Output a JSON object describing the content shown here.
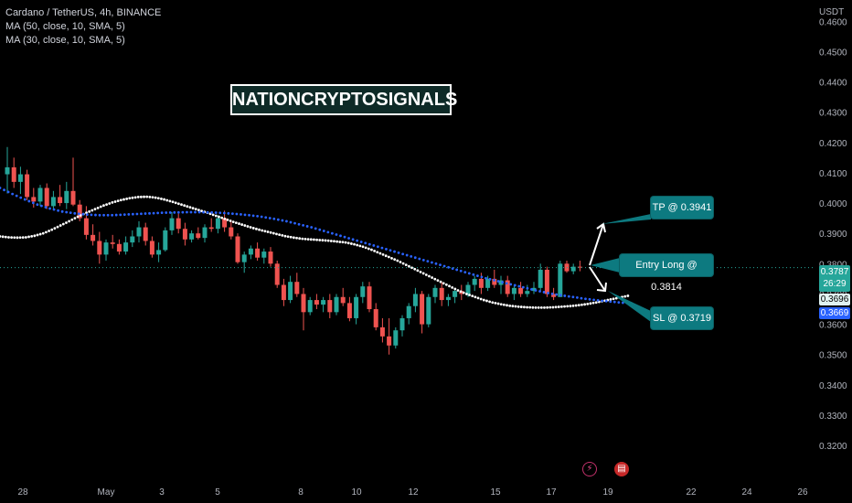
{
  "legend": {
    "symbol": "Cardano / TetherUS, 4h, BINANCE",
    "ma1": "MA (50, close, 10, SMA, 5)",
    "ma2": "MA (30, close, 10, SMA, 5)"
  },
  "watermark": "NATIONCRYPTOSIGNALS",
  "callouts": {
    "tp": "TP @ 0.3941",
    "entry": "Entry Long @ 0.3814",
    "sl": "SL @ 0.3719"
  },
  "price_tags": {
    "last": "0.3787",
    "countdown": "26:29",
    "ma_white": "0.3696",
    "ma_blue": "0.3669"
  },
  "icons": {
    "flash": "lightning-icon",
    "flag": "us-flag-icon"
  },
  "colors": {
    "up": "#26a69a",
    "down": "#ef5350",
    "ma_white": "#ffffff",
    "ma_blue": "#2962ff",
    "callout": "#0d7a80"
  },
  "chart_data": {
    "type": "candlestick",
    "title": "Cardano / TetherUS, 4h, BINANCE",
    "y_unit": "USDT",
    "y_ticks": [
      "0.4600",
      "0.4500",
      "0.4400",
      "0.4300",
      "0.4200",
      "0.4100",
      "0.4000",
      "0.3900",
      "0.3800",
      "0.3700",
      "0.3600",
      "0.3500",
      "0.3400",
      "0.3300",
      "0.3200"
    ],
    "x_ticks": [
      "28",
      "May",
      "3",
      "5",
      "8",
      "10",
      "12",
      "15",
      "17",
      "19",
      "22",
      "24",
      "26"
    ],
    "ylim": [
      0.3146,
      0.4634
    ],
    "grid": false,
    "candles": [
      [
        0.4095,
        0.4185,
        0.4032,
        0.4118
      ],
      [
        0.4118,
        0.415,
        0.405,
        0.407
      ],
      [
        0.407,
        0.412,
        0.403,
        0.4095
      ],
      [
        0.4095,
        0.411,
        0.401,
        0.402
      ],
      [
        0.402,
        0.405,
        0.3985,
        0.4005
      ],
      [
        0.4005,
        0.406,
        0.399,
        0.405
      ],
      [
        0.405,
        0.4065,
        0.398,
        0.399
      ],
      [
        0.399,
        0.404,
        0.398,
        0.402
      ],
      [
        0.402,
        0.406,
        0.399,
        0.4
      ],
      [
        0.4,
        0.407,
        0.398,
        0.404
      ],
      [
        0.404,
        0.415,
        0.399,
        0.3995
      ],
      [
        0.3995,
        0.401,
        0.394,
        0.395
      ],
      [
        0.395,
        0.399,
        0.388,
        0.3895
      ],
      [
        0.3895,
        0.393,
        0.386,
        0.3875
      ],
      [
        0.3875,
        0.3905,
        0.38,
        0.383
      ],
      [
        0.383,
        0.388,
        0.381,
        0.387
      ],
      [
        0.387,
        0.3895,
        0.385,
        0.3865
      ],
      [
        0.3865,
        0.388,
        0.383,
        0.384
      ],
      [
        0.384,
        0.389,
        0.383,
        0.387
      ],
      [
        0.387,
        0.391,
        0.3855,
        0.389
      ],
      [
        0.389,
        0.394,
        0.387,
        0.392
      ],
      [
        0.392,
        0.3935,
        0.386,
        0.3875
      ],
      [
        0.3875,
        0.389,
        0.382,
        0.383
      ],
      [
        0.383,
        0.387,
        0.3805,
        0.3845
      ],
      [
        0.3845,
        0.392,
        0.384,
        0.391
      ],
      [
        0.391,
        0.397,
        0.3895,
        0.395
      ],
      [
        0.395,
        0.3965,
        0.39,
        0.3915
      ],
      [
        0.3915,
        0.3935,
        0.386,
        0.388
      ],
      [
        0.388,
        0.391,
        0.387,
        0.39
      ],
      [
        0.39,
        0.392,
        0.388,
        0.3885
      ],
      [
        0.3885,
        0.393,
        0.387,
        0.392
      ],
      [
        0.392,
        0.395,
        0.3905,
        0.3915
      ],
      [
        0.3915,
        0.396,
        0.39,
        0.395
      ],
      [
        0.395,
        0.3975,
        0.3905,
        0.392
      ],
      [
        0.392,
        0.3945,
        0.388,
        0.389
      ],
      [
        0.389,
        0.39,
        0.38,
        0.3805
      ],
      [
        0.3805,
        0.384,
        0.377,
        0.383
      ],
      [
        0.383,
        0.386,
        0.3815,
        0.385
      ],
      [
        0.385,
        0.387,
        0.381,
        0.382
      ],
      [
        0.382,
        0.385,
        0.38,
        0.384
      ],
      [
        0.384,
        0.3855,
        0.379,
        0.38
      ],
      [
        0.38,
        0.381,
        0.372,
        0.373
      ],
      [
        0.373,
        0.375,
        0.366,
        0.368
      ],
      [
        0.368,
        0.376,
        0.367,
        0.374
      ],
      [
        0.374,
        0.377,
        0.369,
        0.37
      ],
      [
        0.37,
        0.372,
        0.358,
        0.364
      ],
      [
        0.364,
        0.369,
        0.363,
        0.368
      ],
      [
        0.368,
        0.37,
        0.365,
        0.3665
      ],
      [
        0.3665,
        0.369,
        0.364,
        0.368
      ],
      [
        0.368,
        0.37,
        0.362,
        0.364
      ],
      [
        0.364,
        0.37,
        0.363,
        0.369
      ],
      [
        0.369,
        0.372,
        0.366,
        0.367
      ],
      [
        0.367,
        0.369,
        0.361,
        0.362
      ],
      [
        0.362,
        0.37,
        0.36,
        0.369
      ],
      [
        0.369,
        0.374,
        0.367,
        0.3725
      ],
      [
        0.3725,
        0.374,
        0.364,
        0.365
      ],
      [
        0.365,
        0.367,
        0.358,
        0.359
      ],
      [
        0.359,
        0.362,
        0.354,
        0.356
      ],
      [
        0.356,
        0.362,
        0.35,
        0.353
      ],
      [
        0.353,
        0.359,
        0.352,
        0.358
      ],
      [
        0.358,
        0.363,
        0.356,
        0.362
      ],
      [
        0.362,
        0.367,
        0.36,
        0.366
      ],
      [
        0.366,
        0.372,
        0.364,
        0.37
      ],
      [
        0.37,
        0.371,
        0.357,
        0.36
      ],
      [
        0.36,
        0.37,
        0.359,
        0.369
      ],
      [
        0.369,
        0.373,
        0.367,
        0.372
      ],
      [
        0.372,
        0.374,
        0.366,
        0.368
      ],
      [
        0.368,
        0.37,
        0.366,
        0.369
      ],
      [
        0.369,
        0.372,
        0.367,
        0.371
      ],
      [
        0.371,
        0.373,
        0.368,
        0.37
      ],
      [
        0.37,
        0.374,
        0.369,
        0.373
      ],
      [
        0.373,
        0.376,
        0.371,
        0.375
      ],
      [
        0.375,
        0.377,
        0.37,
        0.372
      ],
      [
        0.372,
        0.376,
        0.371,
        0.375
      ],
      [
        0.375,
        0.378,
        0.372,
        0.373
      ],
      [
        0.373,
        0.376,
        0.37,
        0.3745
      ],
      [
        0.3745,
        0.376,
        0.369,
        0.37
      ],
      [
        0.37,
        0.373,
        0.368,
        0.372
      ],
      [
        0.372,
        0.374,
        0.369,
        0.37
      ],
      [
        0.37,
        0.373,
        0.369,
        0.371
      ],
      [
        0.371,
        0.374,
        0.37,
        0.372
      ],
      [
        0.372,
        0.38,
        0.371,
        0.378
      ],
      [
        0.378,
        0.379,
        0.369,
        0.37
      ],
      [
        0.37,
        0.372,
        0.368,
        0.369
      ],
      [
        0.369,
        0.381,
        0.369,
        0.38
      ],
      [
        0.38,
        0.381,
        0.377,
        0.3775
      ],
      [
        0.3775,
        0.38,
        0.3765,
        0.379
      ],
      [
        0.379,
        0.381,
        0.3775,
        0.3787
      ]
    ],
    "series": [
      {
        "name": "MA (50, close, 10, SMA, 5)",
        "color": "#ffffff",
        "values": [
          0.389,
          0.3887,
          0.3886,
          0.3887,
          0.3892,
          0.39,
          0.3912,
          0.3926,
          0.394,
          0.3955,
          0.3968,
          0.398,
          0.3992,
          0.4002,
          0.401,
          0.4016,
          0.402,
          0.4021,
          0.4018,
          0.4012,
          0.4004,
          0.3995,
          0.3986,
          0.3977,
          0.3968,
          0.3958,
          0.3948,
          0.3938,
          0.3929,
          0.392,
          0.3912,
          0.3905,
          0.3898,
          0.3891,
          0.3886,
          0.3882,
          0.388,
          0.3878,
          0.3876,
          0.3873,
          0.387,
          0.3864,
          0.3856,
          0.3846,
          0.3834,
          0.3822,
          0.381,
          0.3796,
          0.3782,
          0.3768,
          0.3754,
          0.374,
          0.3726,
          0.3712,
          0.37,
          0.369,
          0.368,
          0.3672,
          0.3666,
          0.3661,
          0.3658,
          0.3656,
          0.3655,
          0.3655,
          0.3656,
          0.3658,
          0.366,
          0.3663,
          0.3667,
          0.3672,
          0.3678,
          0.3684,
          0.369,
          0.3696
        ]
      },
      {
        "name": "MA (30, close, 10, SMA, 5)",
        "color": "#2962ff",
        "values": [
          0.405,
          0.403,
          0.4012,
          0.3995,
          0.3982,
          0.3972,
          0.3966,
          0.3962,
          0.396,
          0.396,
          0.3962,
          0.3964,
          0.3966,
          0.3968,
          0.3969,
          0.397,
          0.397,
          0.3969,
          0.3967,
          0.3964,
          0.396,
          0.3955,
          0.3948,
          0.394,
          0.393,
          0.392,
          0.3908,
          0.3896,
          0.3884,
          0.3872,
          0.386,
          0.3848,
          0.3836,
          0.3824,
          0.3812,
          0.38,
          0.3788,
          0.3776,
          0.3764,
          0.3752,
          0.3742,
          0.3732,
          0.3722,
          0.3712,
          0.3703,
          0.3696,
          0.369,
          0.3684,
          0.3679,
          0.3675,
          0.3671,
          0.3669
        ]
      }
    ],
    "annotations": [
      {
        "text": "TP @ 0.3941",
        "value": 0.3941
      },
      {
        "text": "Entry Long @ 0.3814",
        "value": 0.3814
      },
      {
        "text": "SL @ 0.3719",
        "value": 0.3719
      }
    ]
  }
}
